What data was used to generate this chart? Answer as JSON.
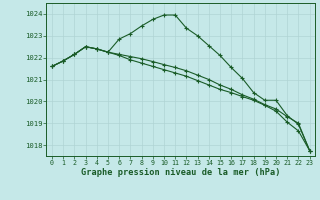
{
  "background_color": "#c5e8e8",
  "grid_color": "#b0d4d4",
  "line_color": "#1a5c28",
  "xlabel": "Graphe pression niveau de la mer (hPa)",
  "ylim": [
    1017.5,
    1024.5
  ],
  "xlim": [
    -0.5,
    23.5
  ],
  "yticks": [
    1018,
    1019,
    1020,
    1021,
    1022,
    1023,
    1024
  ],
  "xticks": [
    0,
    1,
    2,
    3,
    4,
    5,
    6,
    7,
    8,
    9,
    10,
    11,
    12,
    13,
    14,
    15,
    16,
    17,
    18,
    19,
    20,
    21,
    22,
    23
  ],
  "series": [
    [
      1021.6,
      1021.85,
      1022.15,
      1022.5,
      1022.4,
      1022.25,
      1022.85,
      1023.1,
      1023.45,
      1023.75,
      1023.95,
      1023.95,
      1023.35,
      1023.0,
      1022.55,
      1022.1,
      1021.55,
      1021.05,
      1020.4,
      1020.05,
      1020.05,
      1019.35,
      1018.95,
      1017.75
    ],
    [
      1021.6,
      1021.85,
      1022.15,
      1022.5,
      1022.4,
      1022.25,
      1022.15,
      1022.05,
      1021.95,
      1021.82,
      1021.68,
      1021.55,
      1021.4,
      1021.2,
      1021.0,
      1020.75,
      1020.55,
      1020.3,
      1020.1,
      1019.85,
      1019.65,
      1019.3,
      1019.0,
      1017.75
    ],
    [
      1021.6,
      1021.85,
      1022.15,
      1022.5,
      1022.4,
      1022.25,
      1022.1,
      1021.9,
      1021.75,
      1021.6,
      1021.45,
      1021.3,
      1021.15,
      1020.95,
      1020.75,
      1020.55,
      1020.4,
      1020.22,
      1020.05,
      1019.82,
      1019.55,
      1019.05,
      1018.65,
      1017.75
    ]
  ]
}
